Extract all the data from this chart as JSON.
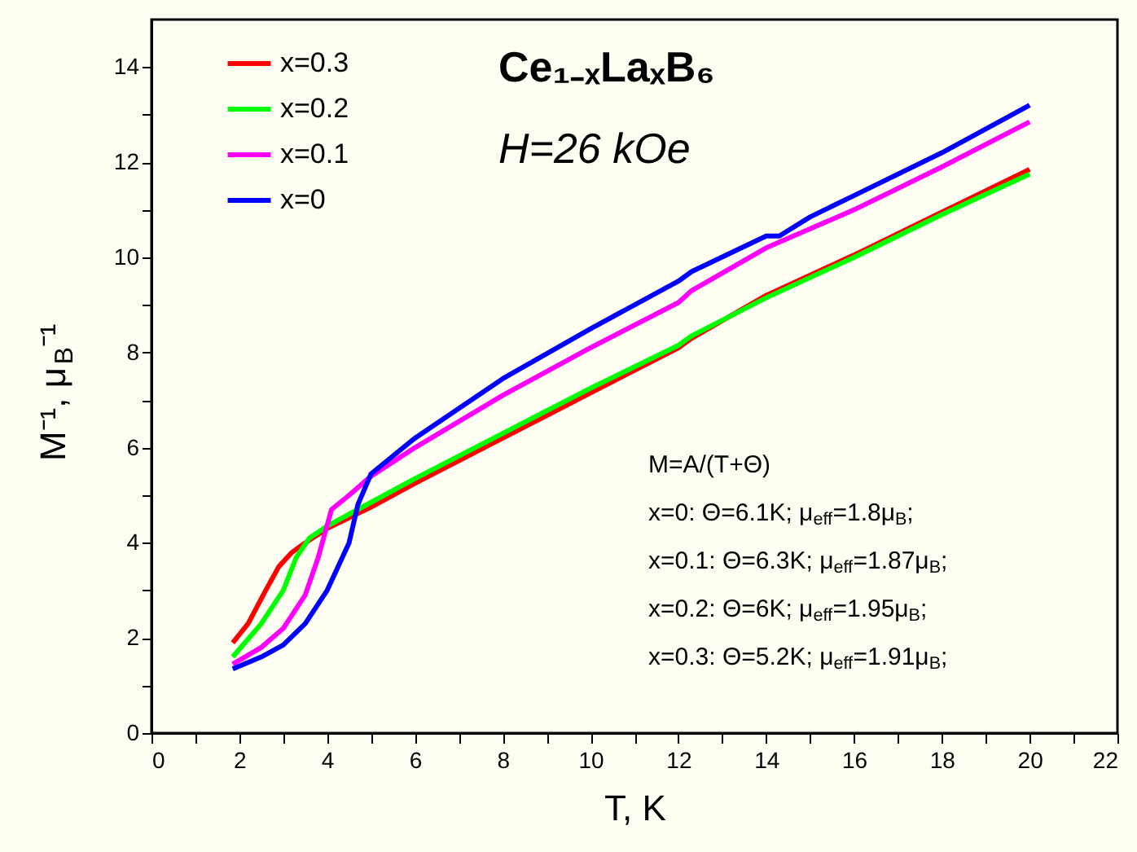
{
  "chart_data": {
    "type": "line",
    "title": "Ce₁₋ₓLaₓB₆",
    "subtitle": "H=26 kOe",
    "xlabel": "T, K",
    "ylabel": "M⁻¹, μ$_{B}$⁻¹",
    "xlim": [
      0,
      22
    ],
    "ylim": [
      0,
      15
    ],
    "xticks": [
      0,
      {
        "value": 1,
        "label": null
      },
      2,
      {
        "value": 3,
        "label": null
      },
      4,
      {
        "value": 5,
        "label": null
      },
      6,
      {
        "value": 7,
        "label": null
      },
      8,
      {
        "value": 9,
        "label": null
      },
      10,
      {
        "value": 11,
        "label": null
      },
      12,
      {
        "value": 13,
        "label": null
      },
      14,
      {
        "value": 15,
        "label": null
      },
      16,
      {
        "value": 17,
        "label": null
      },
      18,
      {
        "value": 19,
        "label": null
      },
      20,
      {
        "value": 21,
        "label": null
      },
      22
    ],
    "yticks": [
      0,
      {
        "value": 1,
        "label": null
      },
      2,
      {
        "value": 3,
        "label": null
      },
      4,
      {
        "value": 5,
        "label": null
      },
      6,
      {
        "value": 7,
        "label": null
      },
      8,
      {
        "value": 9,
        "label": null
      },
      10,
      {
        "value": 11,
        "label": null
      },
      12,
      {
        "value": 13,
        "label": null
      },
      14
    ],
    "grid": false,
    "legend": "top left",
    "marker": "none",
    "line_style": "solid",
    "annotations": [
      "M=A/(T+Θ)",
      "x=0: Θ=6.1K; μ$_{eff}$=1.8μ$_{B}$;",
      "x=0.1: Θ=6.3K; μ$_{eff}$=1.87μ$_{B}$;",
      "x=0.2: Θ=6K; μ$_{eff}$=1.95μ$_{B}$;",
      "x=0.3: Θ=5.2K; μ$_{eff}$=1.91μ$_{B}$;"
    ],
    "series": [
      {
        "name": "x=0.3",
        "color": "#ff0000",
        "x": [
          1.85,
          2.2,
          2.6,
          2.9,
          3.2,
          3.5,
          4,
          5,
          6,
          8,
          10,
          12,
          12.3,
          14,
          16,
          18,
          20
        ],
        "values": [
          1.9,
          2.3,
          3.0,
          3.5,
          3.8,
          4.0,
          4.3,
          4.75,
          5.25,
          6.2,
          7.15,
          8.1,
          8.3,
          9.2,
          10.05,
          10.95,
          11.85
        ]
      },
      {
        "name": "x=0.2",
        "color": "#00ff00",
        "x": [
          1.85,
          2.5,
          3.0,
          3.3,
          3.6,
          4,
          5,
          6,
          8,
          10,
          12,
          12.3,
          14,
          16,
          18,
          20
        ],
        "values": [
          1.6,
          2.3,
          3.0,
          3.7,
          4.1,
          4.35,
          4.85,
          5.35,
          6.3,
          7.25,
          8.15,
          8.35,
          9.15,
          10.0,
          10.9,
          11.75
        ]
      },
      {
        "name": "x=0.1",
        "color": "#ff00ff",
        "x": [
          1.85,
          2.5,
          3.0,
          3.5,
          3.8,
          4.1,
          4.5,
          5,
          6,
          8,
          10,
          12,
          12.3,
          14,
          16,
          18,
          20
        ],
        "values": [
          1.45,
          1.8,
          2.2,
          2.9,
          3.7,
          4.7,
          5.0,
          5.4,
          6.0,
          7.1,
          8.1,
          9.05,
          9.3,
          10.2,
          11.0,
          11.9,
          12.85
        ]
      },
      {
        "name": "x=0",
        "color": "#0000ff",
        "x": [
          1.85,
          2.5,
          3.0,
          3.5,
          4.0,
          4.5,
          4.7,
          5.0,
          6,
          8,
          10,
          12,
          12.3,
          14,
          14.3,
          15,
          16,
          18,
          20
        ],
        "values": [
          1.35,
          1.6,
          1.85,
          2.3,
          3.0,
          4.0,
          4.8,
          5.45,
          6.2,
          7.45,
          8.5,
          9.5,
          9.7,
          10.45,
          10.45,
          10.85,
          11.3,
          12.2,
          13.2
        ]
      }
    ]
  }
}
